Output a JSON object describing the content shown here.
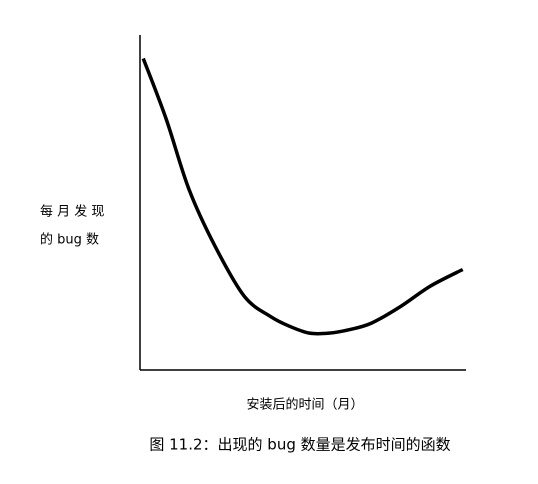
{
  "chart_data": {
    "type": "line",
    "ylabel": [
      "每 月 发 现",
      "的 bug 数"
    ],
    "xlabel": "安装后的时间（月）",
    "caption": "图 11.2：出现的 bug 数量是发布时间的函数",
    "x": [
      1,
      8,
      15,
      23,
      32,
      40,
      46,
      52,
      58,
      64,
      71,
      80,
      89,
      99
    ],
    "values": [
      93,
      75,
      54,
      37,
      22,
      16,
      13,
      11,
      11,
      12,
      14,
      19,
      25,
      30
    ],
    "color": "#000000",
    "xlim": [
      0,
      100
    ],
    "ylim": [
      0,
      100
    ],
    "grid": false
  }
}
